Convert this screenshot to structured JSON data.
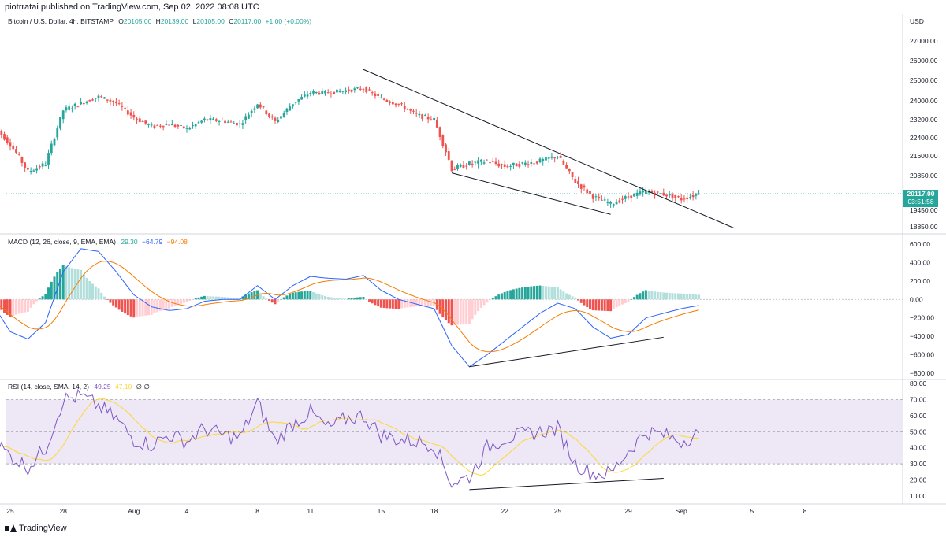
{
  "header": {
    "published": "piotrratai published on TradingView.com, Sep 02, 2022 08:08 UTC"
  },
  "footer": {
    "brand": "TradingView"
  },
  "colors": {
    "up": "#26a69a",
    "down": "#ef5350",
    "line": "#131722",
    "macd": "#2962ff",
    "signal": "#f57c00",
    "rsi": "#7e57c2",
    "rsi_ma": "#fdd835",
    "rsi_band": "#ede7f6",
    "price_tag": "#26a69a"
  },
  "chart_data": [
    {
      "type": "candlestick",
      "legend": {
        "name": "Bitcoin / U.S. Dollar, 4h, BITSTAMP",
        "o_label": "O",
        "o": "20105.00",
        "h_label": "H",
        "h": "20139.00",
        "l_label": "L",
        "l": "20105.00",
        "c_label": "C",
        "c": "20117.00",
        "change": "+1.00 (+0.00%)"
      },
      "currency": "USD",
      "y_ticks": [
        "27000.00",
        "26000.00",
        "25000.00",
        "24000.00",
        "23200.00",
        "22400.00",
        "21600.00",
        "20850.00",
        "19450.00",
        "18850.00"
      ],
      "last_price": "20117.00",
      "countdown": "03:51:58",
      "x_ticks": [
        "25",
        "28",
        "Aug",
        "4",
        "8",
        "11",
        "15",
        "18",
        "22",
        "25",
        "29",
        "Sep",
        "5",
        "8"
      ],
      "trendlines": [
        {
          "from": {
            "date": "Aug 14",
            "price": 25550
          },
          "to": {
            "date": "Sep 04",
            "price": 18800
          }
        },
        {
          "from": {
            "date": "Aug 19",
            "price": 20950
          },
          "to": {
            "date": "Aug 28",
            "price": 19300
          }
        }
      ],
      "close_anchors": [
        {
          "date": "Jul 24",
          "price": 23000
        },
        {
          "date": "Jul 25",
          "price": 22100
        },
        {
          "date": "Jul 26",
          "price": 21000
        },
        {
          "date": "Jul 27",
          "price": 21300
        },
        {
          "date": "Jul 28",
          "price": 23600
        },
        {
          "date": "Jul 29",
          "price": 23900
        },
        {
          "date": "Jul 30",
          "price": 24200
        },
        {
          "date": "Jul 31",
          "price": 23900
        },
        {
          "date": "Aug 01",
          "price": 23300
        },
        {
          "date": "Aug 02",
          "price": 22900
        },
        {
          "date": "Aug 03",
          "price": 23000
        },
        {
          "date": "Aug 04",
          "price": 22800
        },
        {
          "date": "Aug 05",
          "price": 23200
        },
        {
          "date": "Aug 06",
          "price": 23150
        },
        {
          "date": "Aug 07",
          "price": 23000
        },
        {
          "date": "Aug 08",
          "price": 23900
        },
        {
          "date": "Aug 09",
          "price": 23100
        },
        {
          "date": "Aug 10",
          "price": 23900
        },
        {
          "date": "Aug 11",
          "price": 24400
        },
        {
          "date": "Aug 12",
          "price": 24400
        },
        {
          "date": "Aug 13",
          "price": 24500
        },
        {
          "date": "Aug 14",
          "price": 24600
        },
        {
          "date": "Aug 15",
          "price": 24100
        },
        {
          "date": "Aug 16",
          "price": 23850
        },
        {
          "date": "Aug 17",
          "price": 23400
        },
        {
          "date": "Aug 18",
          "price": 23200
        },
        {
          "date": "Aug 19",
          "price": 21100
        },
        {
          "date": "Aug 20",
          "price": 21300
        },
        {
          "date": "Aug 21",
          "price": 21400
        },
        {
          "date": "Aug 22",
          "price": 21200
        },
        {
          "date": "Aug 23",
          "price": 21300
        },
        {
          "date": "Aug 24",
          "price": 21400
        },
        {
          "date": "Aug 25",
          "price": 21600
        },
        {
          "date": "Aug 26",
          "price": 20600
        },
        {
          "date": "Aug 27",
          "price": 20000
        },
        {
          "date": "Aug 28",
          "price": 19700
        },
        {
          "date": "Aug 29",
          "price": 20000
        },
        {
          "date": "Aug 30",
          "price": 20200
        },
        {
          "date": "Aug 31",
          "price": 20100
        },
        {
          "date": "Sep 01",
          "price": 19900
        },
        {
          "date": "Sep 02",
          "price": 20117
        }
      ]
    },
    {
      "type": "line",
      "legend": {
        "name": "MACD (12, 26, close, 9, EMA, EMA)",
        "histogram": "29.30",
        "macd": "−64.79",
        "signal": "−94.08"
      },
      "y_ticks": [
        "600.00",
        "400.00",
        "200.00",
        "0.00",
        "−200.00",
        "−400.00",
        "−600.00",
        "−800.00"
      ],
      "trendline": {
        "from": {
          "date": "Aug 20",
          "value": -730
        },
        "to": {
          "date": "Aug 31",
          "value": -410
        }
      },
      "macd_anchors": [
        {
          "date": "Jul 24",
          "value": -50
        },
        {
          "date": "Jul 25",
          "value": -350
        },
        {
          "date": "Jul 26",
          "value": -430
        },
        {
          "date": "Jul 27",
          "value": -250
        },
        {
          "date": "Jul 28",
          "value": 300
        },
        {
          "date": "Jul 29",
          "value": 550
        },
        {
          "date": "Jul 30",
          "value": 520
        },
        {
          "date": "Jul 31",
          "value": 300
        },
        {
          "date": "Aug 01",
          "value": 50
        },
        {
          "date": "Aug 02",
          "value": -80
        },
        {
          "date": "Aug 03",
          "value": -120
        },
        {
          "date": "Aug 04",
          "value": -100
        },
        {
          "date": "Aug 05",
          "value": -20
        },
        {
          "date": "Aug 06",
          "value": 0
        },
        {
          "date": "Aug 07",
          "value": 0
        },
        {
          "date": "Aug 08",
          "value": 150
        },
        {
          "date": "Aug 09",
          "value": 0
        },
        {
          "date": "Aug 10",
          "value": 150
        },
        {
          "date": "Aug 11",
          "value": 250
        },
        {
          "date": "Aug 12",
          "value": 230
        },
        {
          "date": "Aug 13",
          "value": 220
        },
        {
          "date": "Aug 14",
          "value": 260
        },
        {
          "date": "Aug 15",
          "value": 100
        },
        {
          "date": "Aug 16",
          "value": 0
        },
        {
          "date": "Aug 17",
          "value": -50
        },
        {
          "date": "Aug 18",
          "value": -100
        },
        {
          "date": "Aug 19",
          "value": -500
        },
        {
          "date": "Aug 20",
          "value": -730
        },
        {
          "date": "Aug 21",
          "value": -600
        },
        {
          "date": "Aug 22",
          "value": -450
        },
        {
          "date": "Aug 23",
          "value": -300
        },
        {
          "date": "Aug 24",
          "value": -150
        },
        {
          "date": "Aug 25",
          "value": -40
        },
        {
          "date": "Aug 26",
          "value": -100
        },
        {
          "date": "Aug 27",
          "value": -300
        },
        {
          "date": "Aug 28",
          "value": -420
        },
        {
          "date": "Aug 29",
          "value": -380
        },
        {
          "date": "Aug 30",
          "value": -200
        },
        {
          "date": "Aug 31",
          "value": -150
        },
        {
          "date": "Sep 01",
          "value": -100
        },
        {
          "date": "Sep 02",
          "value": -65
        }
      ]
    },
    {
      "type": "line",
      "legend": {
        "name": "RSI (14, close, SMA, 14, 2)",
        "rsi": "49.25",
        "ma": "47.10",
        "extra": "∅ ∅"
      },
      "y_ticks": [
        "80.00",
        "70.00",
        "60.00",
        "50.00",
        "40.00",
        "30.00",
        "20.00",
        "10.00"
      ],
      "band": [
        30,
        70
      ],
      "midline": 50,
      "trendline": {
        "from": {
          "date": "Aug 20",
          "value": 14
        },
        "to": {
          "date": "Aug 31",
          "value": 21
        }
      },
      "rsi_anchors": [
        {
          "date": "Jul 24",
          "value": 45
        },
        {
          "date": "Jul 25",
          "value": 35
        },
        {
          "date": "Jul 26",
          "value": 28
        },
        {
          "date": "Jul 27",
          "value": 40
        },
        {
          "date": "Jul 28",
          "value": 70
        },
        {
          "date": "Jul 29",
          "value": 72
        },
        {
          "date": "Jul 30",
          "value": 66
        },
        {
          "date": "Jul 31",
          "value": 58
        },
        {
          "date": "Aug 01",
          "value": 45
        },
        {
          "date": "Aug 02",
          "value": 42
        },
        {
          "date": "Aug 03",
          "value": 48
        },
        {
          "date": "Aug 04",
          "value": 44
        },
        {
          "date": "Aug 05",
          "value": 52
        },
        {
          "date": "Aug 06",
          "value": 48
        },
        {
          "date": "Aug 07",
          "value": 46
        },
        {
          "date": "Aug 08",
          "value": 68
        },
        {
          "date": "Aug 09",
          "value": 44
        },
        {
          "date": "Aug 10",
          "value": 55
        },
        {
          "date": "Aug 11",
          "value": 62
        },
        {
          "date": "Aug 12",
          "value": 52
        },
        {
          "date": "Aug 13",
          "value": 58
        },
        {
          "date": "Aug 14",
          "value": 60
        },
        {
          "date": "Aug 15",
          "value": 48
        },
        {
          "date": "Aug 16",
          "value": 45
        },
        {
          "date": "Aug 17",
          "value": 44
        },
        {
          "date": "Aug 18",
          "value": 42
        },
        {
          "date": "Aug 19",
          "value": 18
        },
        {
          "date": "Aug 20",
          "value": 22
        },
        {
          "date": "Aug 21",
          "value": 40
        },
        {
          "date": "Aug 22",
          "value": 46
        },
        {
          "date": "Aug 23",
          "value": 48
        },
        {
          "date": "Aug 24",
          "value": 50
        },
        {
          "date": "Aug 25",
          "value": 52
        },
        {
          "date": "Aug 26",
          "value": 30
        },
        {
          "date": "Aug 27",
          "value": 24
        },
        {
          "date": "Aug 28",
          "value": 24
        },
        {
          "date": "Aug 29",
          "value": 38
        },
        {
          "date": "Aug 30",
          "value": 50
        },
        {
          "date": "Aug 31",
          "value": 48
        },
        {
          "date": "Sep 01",
          "value": 44
        },
        {
          "date": "Sep 02",
          "value": 49.25
        }
      ]
    }
  ]
}
